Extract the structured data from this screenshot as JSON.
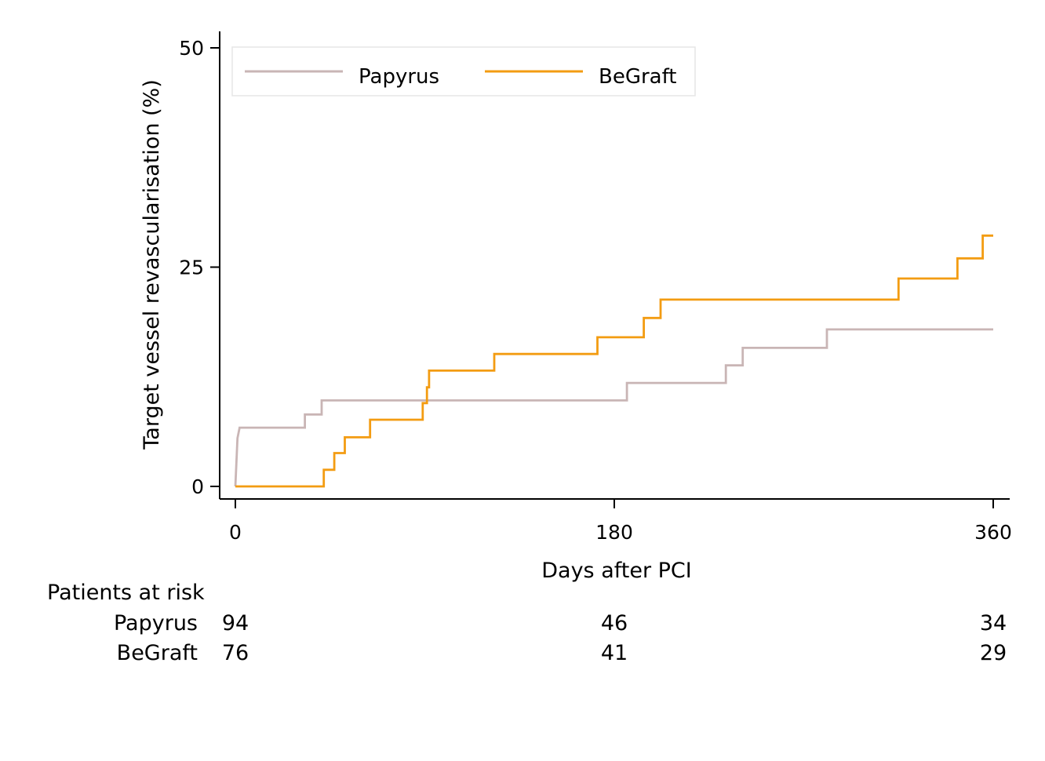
{
  "chart_data": {
    "type": "line",
    "step": true,
    "xlabel": "Days after PCI",
    "ylabel": "Target vessel revascularisation (%)",
    "xlim": [
      0,
      360
    ],
    "ylim": [
      0,
      50
    ],
    "xticks": [
      0,
      180,
      360
    ],
    "yticks": [
      0,
      25,
      50
    ],
    "grid": false,
    "legend_position": "top-left",
    "series": [
      {
        "name": "Papyrus",
        "color": "#c9b5b5",
        "points": [
          [
            0,
            0
          ],
          [
            1,
            5.5
          ],
          [
            2,
            6.7
          ],
          [
            33,
            6.7
          ],
          [
            33,
            8.2
          ],
          [
            41,
            8.2
          ],
          [
            41,
            9.8
          ],
          [
            186,
            9.8
          ],
          [
            186,
            11.8
          ],
          [
            233,
            11.8
          ],
          [
            233,
            13.8
          ],
          [
            241,
            13.8
          ],
          [
            241,
            15.8
          ],
          [
            281,
            15.8
          ],
          [
            281,
            17.9
          ],
          [
            360,
            17.9
          ]
        ]
      },
      {
        "name": "BeGraft",
        "color": "#f39c12",
        "points": [
          [
            0,
            0
          ],
          [
            42,
            0
          ],
          [
            42,
            1.9
          ],
          [
            47,
            1.9
          ],
          [
            47,
            3.8
          ],
          [
            52,
            3.8
          ],
          [
            52,
            5.6
          ],
          [
            64,
            5.6
          ],
          [
            64,
            7.6
          ],
          [
            89,
            7.6
          ],
          [
            89,
            9.5
          ],
          [
            91,
            9.5
          ],
          [
            91,
            11.3
          ],
          [
            92,
            11.3
          ],
          [
            92,
            13.2
          ],
          [
            123,
            13.2
          ],
          [
            123,
            15.1
          ],
          [
            172,
            15.1
          ],
          [
            172,
            17.0
          ],
          [
            194,
            17.0
          ],
          [
            194,
            19.2
          ],
          [
            202,
            19.2
          ],
          [
            202,
            21.3
          ],
          [
            315,
            21.3
          ],
          [
            315,
            23.7
          ],
          [
            343,
            23.7
          ],
          [
            343,
            26.0
          ],
          [
            355,
            26.0
          ],
          [
            355,
            28.6
          ],
          [
            360,
            28.6
          ]
        ]
      }
    ],
    "risk_table": {
      "title": "Patients at risk",
      "rows": [
        {
          "label": "Papyrus",
          "values": [
            "94",
            "46",
            "34"
          ]
        },
        {
          "label": "BeGraft",
          "values": [
            "76",
            "41",
            "29"
          ]
        }
      ]
    }
  }
}
